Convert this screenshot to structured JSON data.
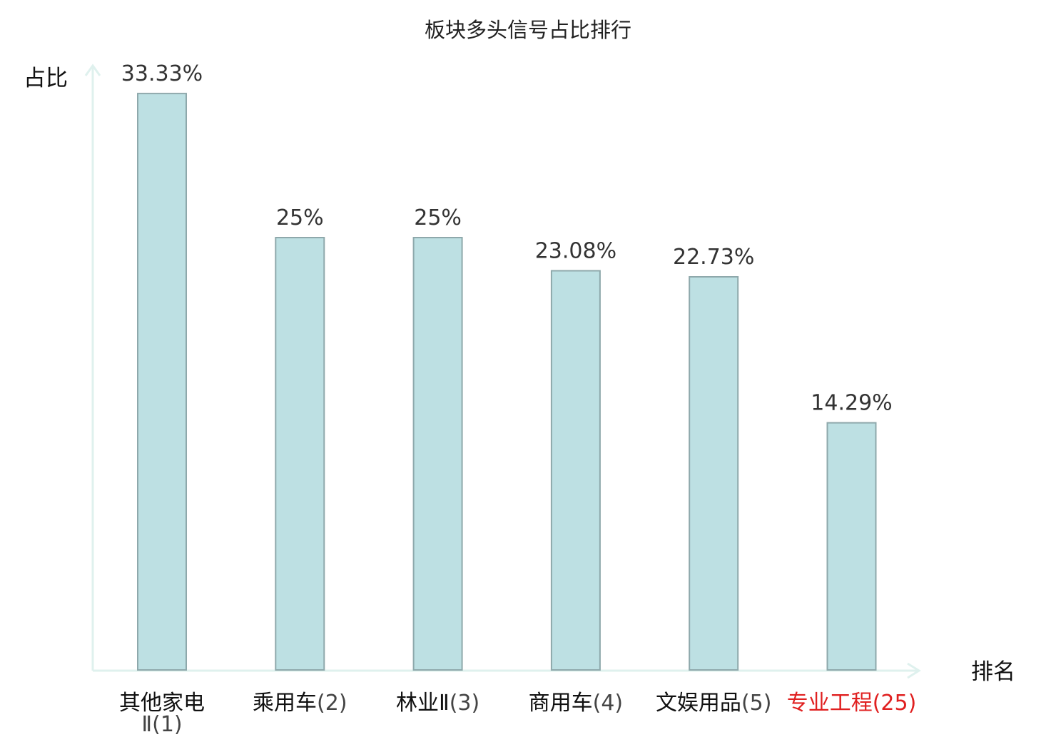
{
  "chart_data": {
    "type": "bar",
    "title": "板块多头信号占比排行",
    "ylabel": "占比",
    "xlabel": "排名",
    "ylim": [
      0,
      35
    ],
    "grid": false,
    "categories": [
      {
        "name": "其他家电",
        "name_line2": "Ⅱ(1)",
        "rank": "",
        "highlight": false
      },
      {
        "name": "乘用车",
        "name_line2": "",
        "rank": "(2)",
        "highlight": false
      },
      {
        "name": "林业Ⅱ",
        "name_line2": "",
        "rank": "(3)",
        "highlight": false
      },
      {
        "name": "商用车",
        "name_line2": "",
        "rank": "(4)",
        "highlight": false
      },
      {
        "name": "文娱用品",
        "name_line2": "",
        "rank": "(5)",
        "highlight": false
      },
      {
        "name": "专业工程",
        "name_line2": "",
        "rank": "(25)",
        "highlight": true
      }
    ],
    "values": [
      33.33,
      25,
      25,
      23.08,
      22.73,
      14.29
    ],
    "value_labels": [
      "33.33%",
      "25%",
      "25%",
      "23.08%",
      "22.73%",
      "14.29%"
    ],
    "colors": {
      "bar_fill": "#bde0e3",
      "bar_stroke": "#8ea8ab",
      "axis": "#dff1ee",
      "highlight_text": "#e02020",
      "text": "#111111"
    }
  }
}
